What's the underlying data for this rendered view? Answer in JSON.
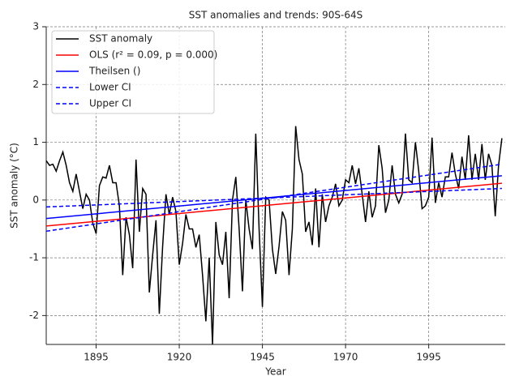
{
  "chart_data": {
    "type": "line",
    "title": "SST anomalies and trends: 90S-64S",
    "xlabel": "Year",
    "ylabel": "SST anomaly (°C)",
    "x": [
      1880,
      1881,
      1882,
      1883,
      1884,
      1885,
      1886,
      1887,
      1888,
      1889,
      1890,
      1891,
      1892,
      1893,
      1894,
      1895,
      1896,
      1897,
      1898,
      1899,
      1900,
      1901,
      1902,
      1903,
      1904,
      1905,
      1906,
      1907,
      1908,
      1909,
      1910,
      1911,
      1912,
      1913,
      1914,
      1915,
      1916,
      1917,
      1918,
      1919,
      1920,
      1921,
      1922,
      1923,
      1924,
      1925,
      1926,
      1927,
      1928,
      1929,
      1930,
      1931,
      1932,
      1933,
      1934,
      1935,
      1936,
      1937,
      1938,
      1939,
      1940,
      1941,
      1942,
      1943,
      1944,
      1945,
      1946,
      1947,
      1948,
      1949,
      1950,
      1951,
      1952,
      1953,
      1954,
      1955,
      1956,
      1957,
      1958,
      1959,
      1960,
      1961,
      1962,
      1963,
      1964,
      1965,
      1966,
      1967,
      1968,
      1969,
      1970,
      1971,
      1972,
      1973,
      1974,
      1975,
      1976,
      1977,
      1978,
      1979,
      1980,
      1981,
      1982,
      1983,
      1984,
      1985,
      1986,
      1987,
      1988,
      1989,
      1990,
      1991,
      1992,
      1993,
      1994,
      1995,
      1996,
      1997,
      1998,
      1999,
      2000,
      2001,
      2002,
      2003,
      2004,
      2005,
      2006,
      2007,
      2008,
      2009,
      2010,
      2011,
      2012,
      2013,
      2014,
      2015,
      2016,
      2017
    ],
    "series": [
      {
        "name": "SST anomaly",
        "color": "#000000",
        "dashed": false,
        "values": [
          0.68,
          0.6,
          0.62,
          0.5,
          0.68,
          0.83,
          0.6,
          0.3,
          0.15,
          0.45,
          0.15,
          -0.15,
          0.1,
          0.0,
          -0.4,
          -0.58,
          0.25,
          0.4,
          0.38,
          0.6,
          0.3,
          0.3,
          -0.1,
          -1.3,
          -0.3,
          -0.6,
          -1.18,
          0.7,
          -0.55,
          0.2,
          0.1,
          -1.6,
          -0.95,
          -0.35,
          -1.97,
          -0.8,
          0.1,
          -0.25,
          0.05,
          -0.2,
          -1.12,
          -0.75,
          -0.25,
          -0.5,
          -0.5,
          -0.82,
          -0.6,
          -1.3,
          -2.1,
          -1.0,
          -2.5,
          -0.38,
          -0.95,
          -1.12,
          -0.55,
          -1.7,
          0.0,
          0.4,
          -0.5,
          -1.58,
          0.0,
          -0.5,
          -0.85,
          1.15,
          -0.5,
          -1.85,
          0.05,
          0.0,
          -0.85,
          -1.28,
          -0.8,
          -0.2,
          -0.35,
          -1.3,
          -0.5,
          1.28,
          0.7,
          0.45,
          -0.55,
          -0.38,
          -0.78,
          0.2,
          -0.82,
          0.1,
          -0.38,
          -0.1,
          0.05,
          0.28,
          -0.1,
          0.0,
          0.35,
          0.3,
          0.6,
          0.28,
          0.55,
          0.1,
          -0.38,
          0.15,
          -0.3,
          -0.1,
          0.95,
          0.55,
          -0.22,
          0.0,
          0.6,
          0.1,
          -0.05,
          0.1,
          1.15,
          0.35,
          0.3,
          1.0,
          0.5,
          -0.15,
          -0.1,
          0.05,
          1.08,
          -0.05,
          0.3,
          0.05,
          0.4,
          0.4,
          0.82,
          0.45,
          0.2,
          0.75,
          0.35,
          1.12,
          0.35,
          0.8,
          0.35,
          0.97,
          0.35,
          0.8,
          0.6,
          -0.28,
          0.6,
          1.07
        ]
      },
      {
        "name": "OLS (r² = 0.09, p = 0.000)",
        "color": "#ff0000",
        "dashed": false,
        "x": [
          1880,
          2017
        ],
        "values": [
          -0.45,
          0.29
        ]
      },
      {
        "name": "Theilsen ()",
        "color": "#0000ff",
        "dashed": false,
        "x": [
          1880,
          2017
        ],
        "values": [
          -0.32,
          0.42
        ]
      },
      {
        "name": "Lower CI",
        "color": "#0000ff",
        "dashed": true,
        "x": [
          1880,
          2017
        ],
        "values": [
          -0.12,
          0.2
        ]
      },
      {
        "name": "Upper CI",
        "color": "#0000ff",
        "dashed": true,
        "x": [
          1880,
          2017
        ],
        "values": [
          -0.54,
          0.62
        ]
      }
    ],
    "xlim": [
      1880,
      2018
    ],
    "ylim": [
      -2.5,
      3
    ],
    "xticks": [
      1895,
      1920,
      1945,
      1970,
      1995
    ],
    "yticks": [
      -2,
      -1,
      0,
      1,
      2,
      3
    ],
    "grid": true,
    "legend": "upper left"
  }
}
